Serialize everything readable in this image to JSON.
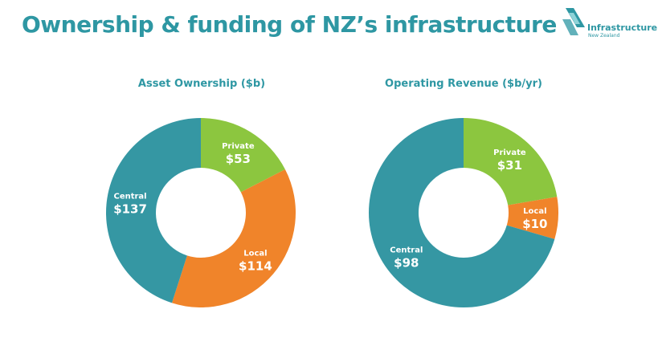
{
  "title": "Ownership & funding of NZ’s infrastructure",
  "logo": {
    "name": "Infrastructure",
    "sub": "New Zealand",
    "color": "#2e97a3",
    "accent": "#8ed3d8"
  },
  "colors": {
    "Private": "#8cc63f",
    "Local": "#f0842a",
    "Central": "#3597a3"
  },
  "chart_data": [
    {
      "type": "pie",
      "title": "Asset Ownership ($b)",
      "categories": [
        "Private",
        "Local",
        "Central"
      ],
      "values": [
        53,
        114,
        137
      ],
      "labels": [
        "$53",
        "$114",
        "$137"
      ]
    },
    {
      "type": "pie",
      "title": "Operating Revenue ($b/yr)",
      "categories": [
        "Private",
        "Local",
        "Central"
      ],
      "values": [
        31,
        10,
        98
      ],
      "labels": [
        "$31",
        "$10",
        "$98"
      ]
    }
  ]
}
